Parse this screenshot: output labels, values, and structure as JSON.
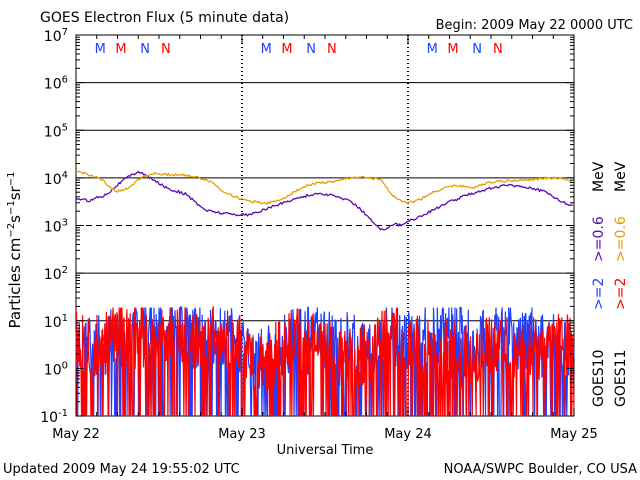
{
  "header": {
    "title": "GOES Electron Flux (5 minute data)",
    "begin": "Begin: 2009 May 22 0000 UTC"
  },
  "footer": {
    "updated": "Updated 2009 May 24 19:55:02 UTC",
    "source": "NOAA/SWPC Boulder, CO USA"
  },
  "chart_data": {
    "type": "line",
    "title": "GOES Electron Flux (5 minute data)",
    "xlabel": "Universal Time",
    "ylabel": "Particles cm^-2 s^-1 sr^-1",
    "yscale": "log",
    "ylim": [
      0.1,
      10000000
    ],
    "y_ticks": [
      {
        "value": 0.1,
        "base": "10",
        "exp": "-1"
      },
      {
        "value": 1,
        "base": "10",
        "exp": "0"
      },
      {
        "value": 10,
        "base": "10",
        "exp": "1"
      },
      {
        "value": 100,
        "base": "10",
        "exp": "2"
      },
      {
        "value": 1000,
        "base": "10",
        "exp": "3"
      },
      {
        "value": 10000,
        "base": "10",
        "exp": "4"
      },
      {
        "value": 100000,
        "base": "10",
        "exp": "5"
      },
      {
        "value": 1000000,
        "base": "10",
        "exp": "6"
      },
      {
        "value": 10000000,
        "base": "10",
        "exp": "7"
      }
    ],
    "x_ticks": [
      "May 22",
      "May 23",
      "May 24",
      "May 25"
    ],
    "xlim": [
      0,
      72
    ],
    "x_unit": "hours since 2009 May 22 0000 UTC",
    "day_dividers_x": [
      24,
      48
    ],
    "solid_grid_y": [
      10,
      100,
      10000,
      100000,
      1000000
    ],
    "dashed_grid_y": [
      1000
    ],
    "noon_markers": [
      {
        "x": 3.5,
        "label": "M",
        "color": "#1f3fff"
      },
      {
        "x": 6.5,
        "label": "M",
        "color": "#ff0000"
      },
      {
        "x": 10.0,
        "label": "N",
        "color": "#1f3fff"
      },
      {
        "x": 13.0,
        "label": "N",
        "color": "#ff0000"
      },
      {
        "x": 27.5,
        "label": "M",
        "color": "#1f3fff"
      },
      {
        "x": 30.5,
        "label": "M",
        "color": "#ff0000"
      },
      {
        "x": 34.0,
        "label": "N",
        "color": "#1f3fff"
      },
      {
        "x": 37.0,
        "label": "N",
        "color": "#ff0000"
      },
      {
        "x": 51.5,
        "label": "M",
        "color": "#1f3fff"
      },
      {
        "x": 54.5,
        "label": "M",
        "color": "#ff0000"
      },
      {
        "x": 58.0,
        "label": "N",
        "color": "#1f3fff"
      },
      {
        "x": 61.0,
        "label": "N",
        "color": "#ff0000"
      }
    ],
    "legend": {
      "placement": "right",
      "goes10": "GOES10",
      "goes11": "GOES11",
      "goes10_ge2": ">=2",
      "goes10_ge06": ">=0.6",
      "goes11_ge2": ">=2",
      "goes11_ge06": ">=0.6",
      "unit": "MeV"
    },
    "series": [
      {
        "name": "GOES10 >=2",
        "color": "#1f3fff",
        "style": "noisy",
        "x": [
          0,
          2,
          4,
          6,
          8,
          10,
          12,
          14,
          16,
          18,
          20,
          22,
          24,
          26,
          28,
          30,
          32,
          34,
          36,
          38,
          40,
          42,
          44,
          46,
          48,
          50,
          52,
          54,
          56,
          58,
          60,
          62,
          64,
          66,
          68,
          70,
          72
        ],
        "y": [
          2,
          4,
          3,
          6,
          8,
          9,
          10,
          9,
          6,
          5,
          4,
          5,
          4,
          1.5,
          2,
          3,
          5,
          6,
          5,
          3,
          4,
          2,
          5,
          6,
          4,
          5,
          6,
          7,
          6,
          5,
          6,
          7,
          4,
          5,
          3,
          4,
          3
        ]
      },
      {
        "name": "GOES11 >=2",
        "color": "#ff0000",
        "style": "noisy",
        "x": [
          0,
          2,
          4,
          6,
          8,
          10,
          12,
          14,
          16,
          18,
          20,
          22,
          24,
          26,
          28,
          30,
          32,
          34,
          36,
          38,
          40,
          42,
          44,
          46,
          48,
          50,
          52,
          54,
          56,
          58,
          60,
          62,
          64,
          66,
          68,
          70,
          72
        ],
        "y": [
          4,
          3,
          4,
          5,
          5,
          6,
          5,
          6,
          5,
          4,
          6,
          4,
          5,
          1,
          2,
          3,
          5,
          4,
          3,
          2,
          3,
          2,
          4,
          5,
          4,
          3,
          2,
          3,
          2,
          3,
          4,
          3,
          2,
          3,
          3,
          4,
          3
        ]
      },
      {
        "name": "GOES10 >=0.6",
        "color": "#5a0ab4",
        "style": "line",
        "x": [
          0,
          2,
          3,
          4,
          5,
          6,
          7,
          8,
          9,
          10,
          11,
          12,
          13,
          14,
          15,
          16,
          17,
          18,
          19,
          20,
          21,
          22,
          23,
          24,
          25,
          26,
          27,
          28,
          29,
          30,
          31,
          32,
          33,
          34,
          35,
          36,
          37,
          38,
          39,
          40,
          41,
          42,
          43,
          44,
          45,
          46,
          47,
          47.5,
          48,
          49,
          50,
          51,
          52,
          53,
          54,
          55,
          56,
          57,
          58,
          59,
          60,
          61,
          62,
          63,
          64,
          65,
          66,
          67,
          68,
          69,
          70,
          71,
          72
        ],
        "y": [
          3700,
          3300,
          3900,
          4200,
          5300,
          7200,
          9300,
          11500,
          13600,
          11500,
          9300,
          7700,
          6300,
          5500,
          5000,
          4500,
          3300,
          2500,
          2050,
          1950,
          1820,
          1780,
          1700,
          1700,
          1680,
          1850,
          2100,
          2400,
          2650,
          3000,
          3400,
          3750,
          4100,
          4400,
          4700,
          4500,
          4300,
          3900,
          3500,
          3000,
          2300,
          1650,
          1150,
          800,
          900,
          1100,
          1000,
          1100,
          1250,
          1400,
          1600,
          1900,
          2300,
          2600,
          3200,
          3500,
          4100,
          4600,
          5100,
          5600,
          6100,
          6400,
          7000,
          7000,
          6700,
          6400,
          6100,
          5500,
          5000,
          4100,
          3300,
          2800,
          2700
        ]
      },
      {
        "name": "GOES11 >=0.6",
        "color": "#e69f00",
        "style": "line",
        "x": [
          0,
          1,
          2,
          3,
          4,
          5,
          6,
          7,
          8,
          9,
          10,
          11,
          12,
          13,
          14,
          15,
          16,
          17,
          18,
          19,
          20,
          21,
          22,
          23,
          24,
          25,
          26,
          27,
          28,
          29,
          30,
          31,
          32,
          33,
          34,
          35,
          36,
          37,
          38,
          39,
          40,
          41,
          42,
          43,
          44,
          45,
          46,
          47,
          48,
          49,
          50,
          51,
          52,
          53,
          54,
          55,
          56,
          57,
          58,
          59,
          60,
          61,
          62,
          63,
          64,
          65,
          66,
          67,
          68,
          69,
          70,
          71,
          72
        ],
        "y": [
          13600,
          12800,
          11500,
          10000,
          8500,
          6200,
          5200,
          5500,
          7000,
          9300,
          11000,
          12200,
          12200,
          11700,
          11700,
          11500,
          11500,
          10500,
          9800,
          9000,
          7500,
          5500,
          4700,
          4000,
          3500,
          3300,
          3100,
          3000,
          3000,
          3200,
          3800,
          4600,
          5500,
          6500,
          7400,
          7800,
          8000,
          8300,
          8500,
          9500,
          10200,
          10200,
          10000,
          9500,
          9000,
          6000,
          4000,
          3400,
          3000,
          3200,
          3700,
          4500,
          5200,
          6000,
          6500,
          6800,
          6600,
          6300,
          6500,
          7500,
          8300,
          8500,
          8600,
          8700,
          8800,
          9000,
          9300,
          9600,
          9800,
          9800,
          9500,
          9000,
          8200
        ]
      }
    ]
  }
}
